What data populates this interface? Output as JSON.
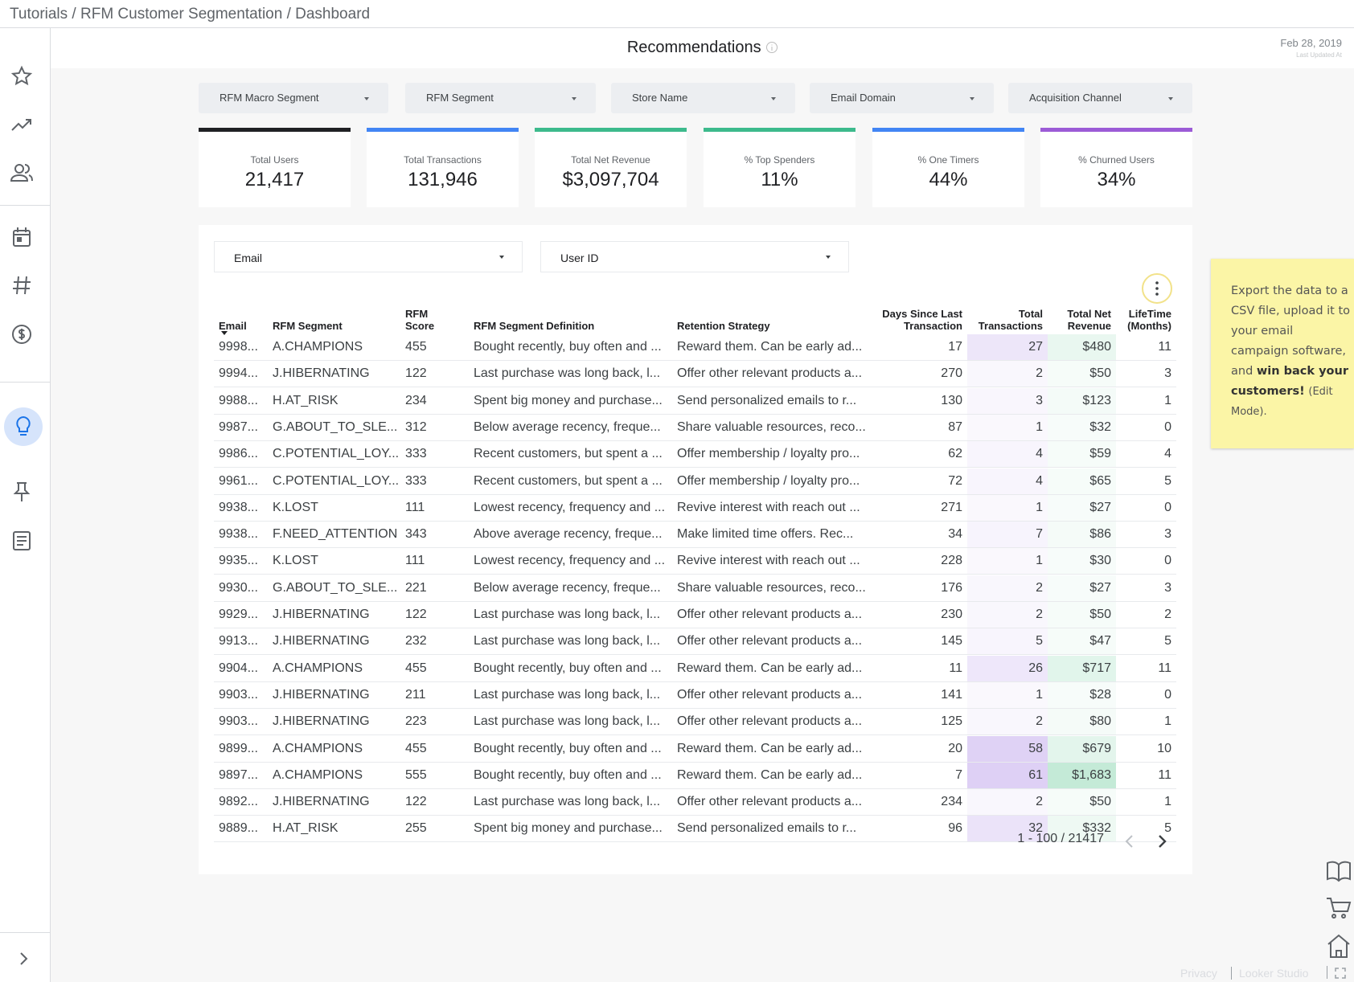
{
  "breadcrumb": "Tutorials / RFM Customer Segmentation / Dashboard",
  "title": "Recommendations",
  "date": "Feb 28, 2019",
  "date_caption": "Last Updated At",
  "filters": [
    "RFM Macro Segment",
    "RFM Segment",
    "Store Name",
    "Email Domain",
    "Acquisition Channel"
  ],
  "kpis": [
    {
      "label": "Total Users",
      "value": "21,417",
      "color": "#202124"
    },
    {
      "label": "Total Transactions",
      "value": "131,946",
      "color": "#4285f4"
    },
    {
      "label": "Total Net Revenue",
      "value": "$3,097,704",
      "color": "#3dba8c"
    },
    {
      "label": "% Top Spenders",
      "value": "11%",
      "color": "#3dba8c"
    },
    {
      "label": "% One Timers",
      "value": "44%",
      "color": "#4285f4"
    },
    {
      "label": "% Churned Users",
      "value": "34%",
      "color": "#9c5bd6"
    }
  ],
  "table_filters": [
    "Email",
    "User ID"
  ],
  "table": {
    "columns": [
      "Email",
      "RFM Segment",
      "RFM Score",
      "RFM Segment Definition",
      "Retention Strategy",
      "Days Since Last Transaction",
      "Total Transactions",
      "Total Net Revenue",
      "LifeTime (Months)"
    ],
    "rows": [
      [
        "9998...",
        "A.CHAMPIONS",
        "455",
        "Bought recently, buy often and ...",
        "Reward them. Can be early ad...",
        "17",
        "27",
        "$480",
        "11"
      ],
      [
        "9994...",
        "J.HIBERNATING",
        "122",
        "Last purchase was long back, l...",
        "Offer other relevant products a...",
        "270",
        "2",
        "$50",
        "3"
      ],
      [
        "9988...",
        "H.AT_RISK",
        "234",
        "Spent big money and purchase...",
        "Send personalized emails to r...",
        "130",
        "3",
        "$123",
        "1"
      ],
      [
        "9987...",
        "G.ABOUT_TO_SLE...",
        "312",
        "Below average recency, freque...",
        "Share valuable resources, reco...",
        "87",
        "1",
        "$32",
        "0"
      ],
      [
        "9986...",
        "C.POTENTIAL_LOY...",
        "333",
        "Recent customers, but spent a ...",
        "Offer membership / loyalty pro...",
        "62",
        "4",
        "$59",
        "4"
      ],
      [
        "9961...",
        "C.POTENTIAL_LOY...",
        "333",
        "Recent customers, but spent a ...",
        "Offer membership / loyalty pro...",
        "72",
        "4",
        "$65",
        "5"
      ],
      [
        "9938...",
        "K.LOST",
        "111",
        "Lowest recency, frequency and ...",
        "Revive interest with reach out ...",
        "271",
        "1",
        "$27",
        "0"
      ],
      [
        "9938...",
        "F.NEED_ATTENTION",
        "343",
        "Above average recency, freque...",
        "Make limited time offers. Rec...",
        "34",
        "7",
        "$86",
        "3"
      ],
      [
        "9935...",
        "K.LOST",
        "111",
        "Lowest recency, frequency and ...",
        "Revive interest with reach out ...",
        "228",
        "1",
        "$30",
        "0"
      ],
      [
        "9930...",
        "G.ABOUT_TO_SLE...",
        "221",
        "Below average recency, freque...",
        "Share valuable resources, reco...",
        "176",
        "2",
        "$27",
        "3"
      ],
      [
        "9929...",
        "J.HIBERNATING",
        "122",
        "Last purchase was long back, l...",
        "Offer other relevant products a...",
        "230",
        "2",
        "$50",
        "2"
      ],
      [
        "9913...",
        "J.HIBERNATING",
        "232",
        "Last purchase was long back, l...",
        "Offer other relevant products a...",
        "145",
        "5",
        "$47",
        "5"
      ],
      [
        "9904...",
        "A.CHAMPIONS",
        "455",
        "Bought recently, buy often and ...",
        "Reward them. Can be early ad...",
        "11",
        "26",
        "$717",
        "11"
      ],
      [
        "9903...",
        "J.HIBERNATING",
        "211",
        "Last purchase was long back, l...",
        "Offer other relevant products a...",
        "141",
        "1",
        "$28",
        "0"
      ],
      [
        "9903...",
        "J.HIBERNATING",
        "223",
        "Last purchase was long back, l...",
        "Offer other relevant products a...",
        "125",
        "2",
        "$80",
        "1"
      ],
      [
        "9899...",
        "A.CHAMPIONS",
        "455",
        "Bought recently, buy often and ...",
        "Reward them. Can be early ad...",
        "20",
        "58",
        "$679",
        "10"
      ],
      [
        "9897...",
        "A.CHAMPIONS",
        "555",
        "Bought recently, buy often and ...",
        "Reward them. Can be early ad...",
        "7",
        "61",
        "$1,683",
        "11"
      ],
      [
        "9892...",
        "J.HIBERNATING",
        "122",
        "Last purchase was long back, l...",
        "Offer other relevant products a...",
        "234",
        "2",
        "$50",
        "1"
      ],
      [
        "9889...",
        "H.AT_RISK",
        "255",
        "Spent big money and purchase...",
        "Send personalized emails to r...",
        "96",
        "32",
        "$332",
        "5"
      ]
    ]
  },
  "pagination": "1 - 100 / 21417",
  "note": {
    "text": "Export the data to a CSV file, upload it to your email campaign software, and",
    "bold": "win back your customers!",
    "after": "(Edit Mode)."
  },
  "footer": {
    "privacy": "Privacy",
    "brand": "Looker Studio"
  }
}
